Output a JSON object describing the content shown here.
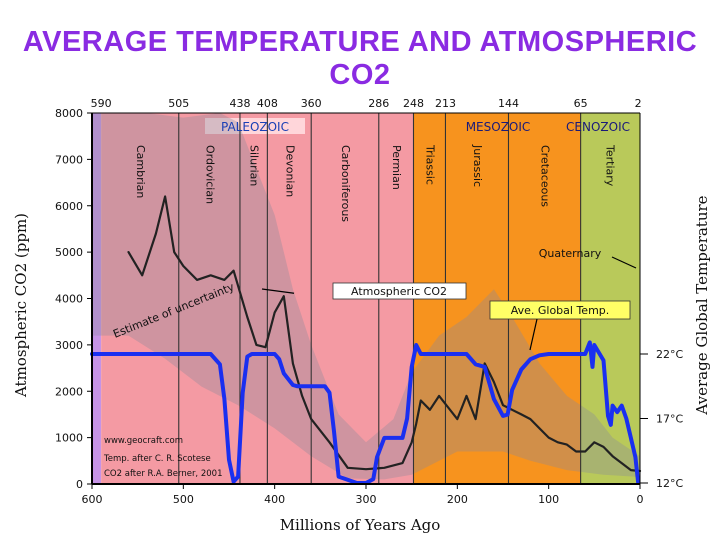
{
  "title": "AVERAGE TEMPERATURE AND ATMOSPHERIC CO2",
  "chart_data": {
    "type": "line",
    "xlabel": "Millions of Years Ago",
    "ylabel": "Atmospheric CO2 (ppm)",
    "y2label": "Average Global Temperature",
    "xlim": [
      600,
      0
    ],
    "ylim": [
      0,
      8000
    ],
    "x_ticks": [
      600,
      500,
      400,
      300,
      200,
      100,
      0
    ],
    "y_ticks": [
      0,
      1000,
      2000,
      3000,
      4000,
      5000,
      6000,
      7000,
      8000
    ],
    "top_ticks": [
      590,
      505,
      438,
      408,
      360,
      286,
      248,
      213,
      144,
      65,
      2
    ],
    "y2_ticks": [
      {
        "label": "22°C",
        "value": 22
      },
      {
        "label": "17°C",
        "value": 17
      },
      {
        "label": "12°C",
        "value": 12
      }
    ],
    "eras": [
      {
        "name": "PALEOZOIC",
        "from": 590,
        "to": 248,
        "color": "#f49aa3"
      },
      {
        "name": "MESOZOIC",
        "from": 248,
        "to": 65,
        "color": "#f7931e"
      },
      {
        "name": "CENOZOIC",
        "from": 65,
        "to": 0,
        "color": "#b9c95a"
      }
    ],
    "periods": [
      {
        "name": "Cambrian",
        "from": 590,
        "to": 505
      },
      {
        "name": "Ordovician",
        "from": 505,
        "to": 438
      },
      {
        "name": "Silurian",
        "from": 438,
        "to": 408
      },
      {
        "name": "Devonian",
        "from": 408,
        "to": 360
      },
      {
        "name": "Carboniferous",
        "from": 360,
        "to": 286
      },
      {
        "name": "Permian",
        "from": 286,
        "to": 248
      },
      {
        "name": "Triassic",
        "from": 248,
        "to": 213
      },
      {
        "name": "Jurassic",
        "from": 213,
        "to": 144
      },
      {
        "name": "Cretaceous",
        "from": 144,
        "to": 65
      },
      {
        "name": "Tertiary",
        "from": 65,
        "to": 2
      }
    ],
    "series": [
      {
        "name": "Atmospheric CO2",
        "color": "#222222",
        "x": [
          560,
          545,
          530,
          520,
          510,
          500,
          485,
          470,
          455,
          445,
          430,
          420,
          410,
          400,
          390,
          380,
          370,
          360,
          340,
          320,
          300,
          280,
          260,
          250,
          245,
          240,
          230,
          220,
          210,
          200,
          190,
          180,
          170,
          160,
          150,
          140,
          130,
          120,
          110,
          100,
          90,
          80,
          70,
          60,
          50,
          40,
          30,
          20,
          10,
          0
        ],
        "values": [
          5000,
          4500,
          5400,
          6200,
          5000,
          4700,
          4400,
          4500,
          4400,
          4600,
          3600,
          3000,
          2950,
          3700,
          4050,
          2600,
          1900,
          1400,
          900,
          350,
          320,
          350,
          450,
          900,
          1300,
          1800,
          1600,
          1900,
          1650,
          1400,
          1900,
          1400,
          2600,
          2200,
          1700,
          1600,
          1500,
          1400,
          1200,
          1000,
          900,
          850,
          700,
          700,
          900,
          800,
          600,
          450,
          300,
          280
        ]
      },
      {
        "name": "Ave. Global Temp.",
        "color": "#1a2ff0",
        "x": [
          600,
          470,
          460,
          455,
          450,
          445,
          440,
          435,
          430,
          425,
          400,
          395,
          390,
          380,
          375,
          370,
          345,
          340,
          335,
          330,
          310,
          300,
          292,
          288,
          280,
          260,
          255,
          250,
          245,
          240,
          200,
          190,
          180,
          170,
          160,
          150,
          145,
          140,
          130,
          120,
          110,
          100,
          95,
          90,
          60,
          55,
          52,
          50,
          40,
          35,
          32,
          30,
          25,
          20,
          15,
          10,
          5,
          2
        ],
        "values": [
          22,
          22,
          21.2,
          18.5,
          13.8,
          12.1,
          12.5,
          19,
          21.8,
          22,
          22,
          21.6,
          20.5,
          19.6,
          19.5,
          19.5,
          19.5,
          19,
          16,
          12.5,
          12,
          12,
          12.3,
          14,
          15.5,
          15.5,
          17,
          21,
          22.7,
          22,
          22,
          22,
          21.2,
          21,
          18.5,
          17.2,
          17.3,
          19.2,
          20.8,
          21.6,
          21.9,
          22,
          22,
          22,
          22,
          22.9,
          21,
          22.7,
          21.5,
          17.2,
          16.5,
          18,
          17.5,
          18,
          17,
          15.5,
          14,
          12
        ]
      }
    ],
    "band_note": "Estimate of uncertainty",
    "annotations": [
      {
        "text": "Atmospheric CO2",
        "x": 370,
        "y": 4200
      },
      {
        "text": "Ave. Global Temp.",
        "x": 148,
        "y": 3750
      },
      {
        "text": "Quaternary",
        "x": 107,
        "y": 5050
      },
      {
        "text": "Estimate of uncertainty",
        "x": 527,
        "y": 3400
      }
    ],
    "source_notes": [
      "www.geocraft.com",
      "Temp. after C. R. Scotese",
      "CO2 after R.A. Berner, 2001"
    ]
  }
}
